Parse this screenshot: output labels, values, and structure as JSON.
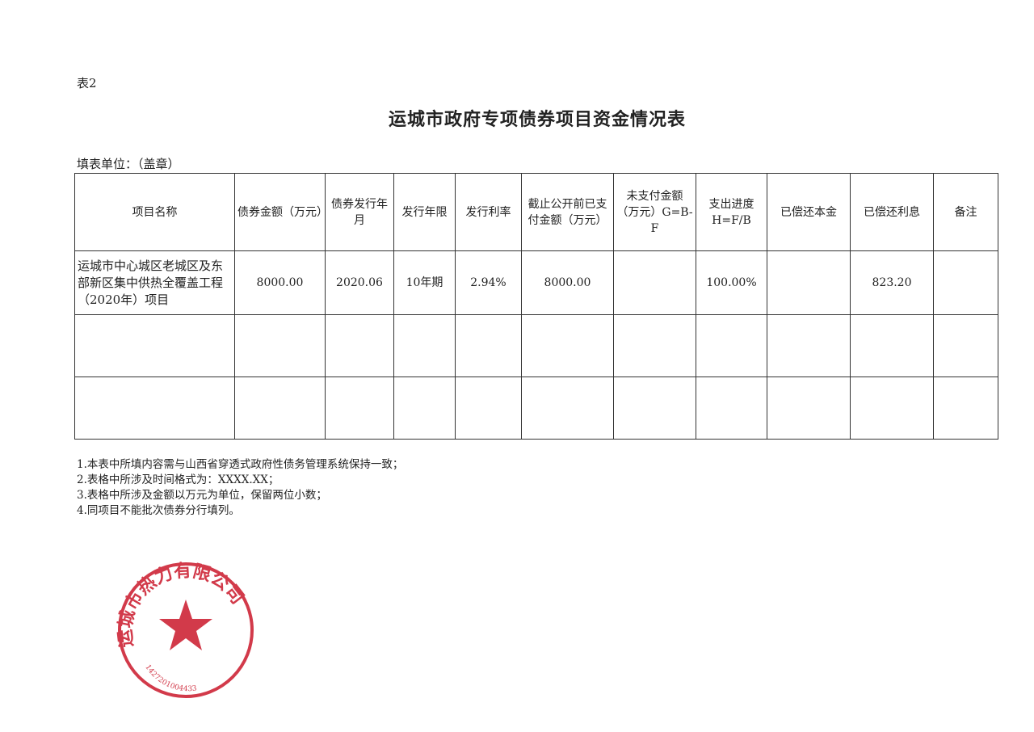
{
  "doc": {
    "label": "表2",
    "title": "运城市政府专项债券项目资金情况表",
    "unit_label": "填表单位：（盖章）"
  },
  "table": {
    "headers": [
      "项目名称",
      "债券金额（万元）",
      "债券发行年月",
      "发行年限",
      "发行利率",
      "截止公开前已支付金额（万元）",
      "未支付金额（万元）G=B-F",
      "支出进度H=F/B",
      "已偿还本金",
      "已偿还利息",
      "备注"
    ],
    "rows": [
      [
        "运城市中心城区老城区及东部新区集中供热全覆盖工程（2020年）项目",
        "8000.00",
        "2020.06",
        "10年期",
        "2.94%",
        "8000.00",
        "",
        "100.00%",
        "",
        "823.20",
        ""
      ],
      [
        "",
        "",
        "",
        "",
        "",
        "",
        "",
        "",
        "",
        "",
        ""
      ],
      [
        "",
        "",
        "",
        "",
        "",
        "",
        "",
        "",
        "",
        "",
        ""
      ]
    ]
  },
  "notes": [
    "1.本表中所填内容需与山西省穿透式政府性债务管理系统保持一致；",
    "2.表格中所涉及时间格式为：XXXX.XX；",
    "3.表格中所涉及金额以万元为单位，保留两位小数；",
    "4.同项目不能批次债券分行填列。"
  ],
  "stamp": {
    "text": "运城市热力有限公司",
    "number": "1427201004433",
    "color": "#d23a4a"
  }
}
